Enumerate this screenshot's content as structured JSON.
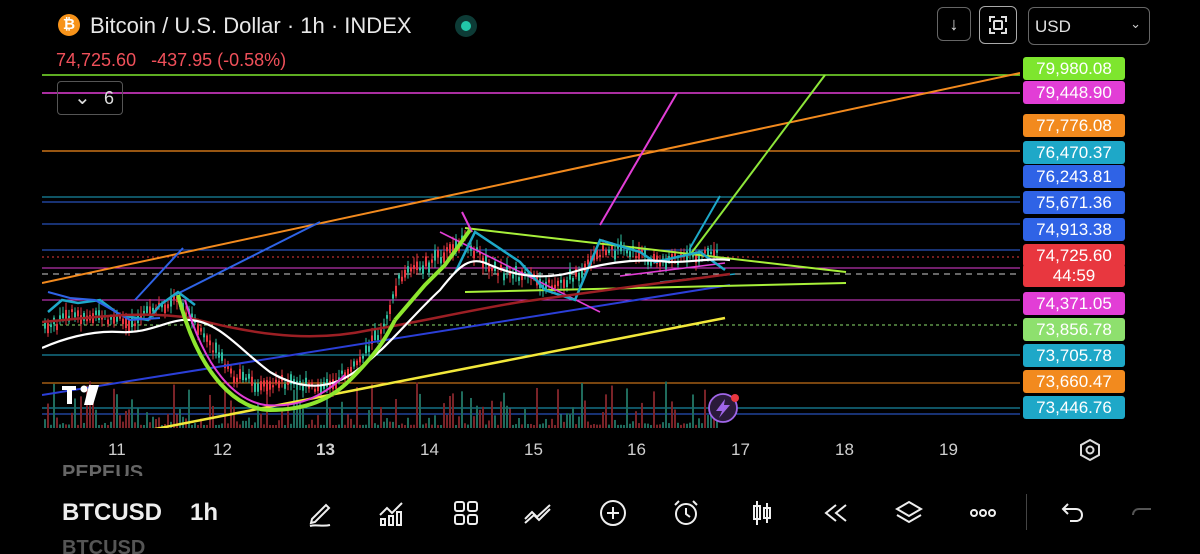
{
  "header": {
    "logo_glyph": "₿",
    "title": "Bitcoin / U.S. Dollar · 1h · INDEX",
    "last_price": "74,725.60",
    "change": "-437.95 (-0.58%)",
    "indicator_count": "6",
    "download_icon": "↓",
    "currency": "USD"
  },
  "price_labels": [
    {
      "text": "79,980.08",
      "bg": "#7ee62e"
    },
    {
      "text": "79,448.90",
      "bg": "#e23ed6"
    },
    {
      "text": "77,776.08",
      "bg": "#f28a1e"
    },
    {
      "text": "76,470.37",
      "bg": "#1ea8c8"
    },
    {
      "text": "76,243.81",
      "bg": "#2f63e6"
    },
    {
      "text": "75,671.36",
      "bg": "#2f63e6"
    },
    {
      "text": "74,913.38",
      "bg": "#2f63e6"
    },
    {
      "text": "74,725.60",
      "bg": "#e8373f"
    },
    {
      "text": "44:59",
      "bg": "#e8373f"
    },
    {
      "text": "74,371.05",
      "bg": "#e23ed6"
    },
    {
      "text": "73,856.78",
      "bg": "#8ee06e"
    },
    {
      "text": "73,705.78",
      "bg": "#1ea8c8"
    },
    {
      "text": "73,660.47",
      "bg": "#f28a1e"
    },
    {
      "text": "73,446.76",
      "bg": "#1ea8c8"
    }
  ],
  "x_axis": [
    "11",
    "12",
    "13",
    "14",
    "15",
    "16",
    "17",
    "18",
    "19"
  ],
  "toolbar": {
    "ghost_above": "PEPEUS",
    "symbol": "BTCUSD",
    "ghost_below": "BTCUSD",
    "timeframe": "1h"
  },
  "colors": {
    "up": "#2fbf9f",
    "down": "#e8373f",
    "accent": "#22c7a9"
  }
}
